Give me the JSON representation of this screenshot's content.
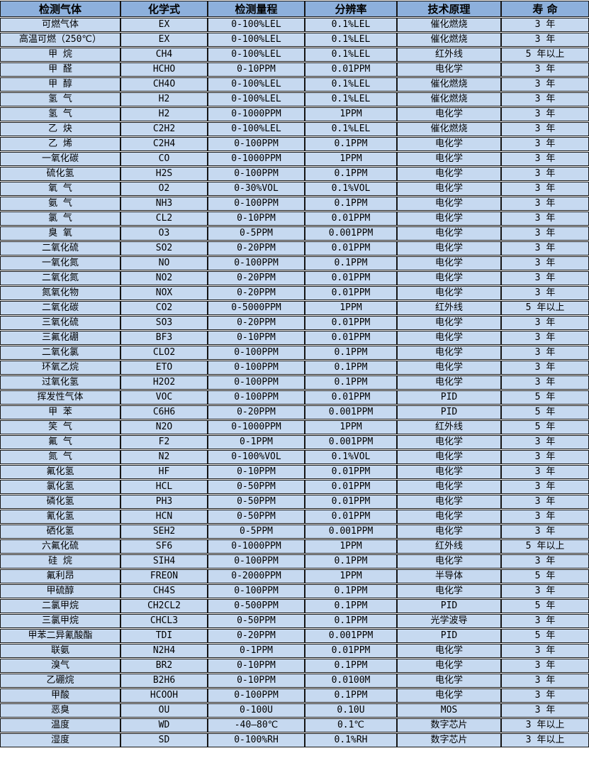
{
  "colors": {
    "header_bg": "#8DB0DC",
    "row_bg": "#C6D9F0",
    "border": "#151515",
    "text": "#000000"
  },
  "table": {
    "columns": [
      "检测气体",
      "化学式",
      "检测量程",
      "分辨率",
      "技术原理",
      "寿 命"
    ],
    "column_keys": [
      "gas",
      "formula",
      "range",
      "resolution",
      "principle",
      "lifespan"
    ],
    "rows": [
      [
        "可燃气体",
        "EX",
        "0-100%LEL",
        "0.1%LEL",
        "催化燃烧",
        "3 年"
      ],
      [
        "高温可燃（250℃）",
        "EX",
        "0-100%LEL",
        "0.1%LEL",
        "催化燃烧",
        "3 年"
      ],
      [
        "甲 烷",
        "CH4",
        "0-100%LEL",
        "0.1%LEL",
        "红外线",
        "5 年以上"
      ],
      [
        "甲 醛",
        "HCHO",
        "0-10PPM",
        "0.01PPM",
        "电化学",
        "3 年"
      ],
      [
        "甲 醇",
        "CH4O",
        "0-100%LEL",
        "0.1%LEL",
        "催化燃烧",
        "3 年"
      ],
      [
        "氢 气",
        "H2",
        "0-100%LEL",
        "0.1%LEL",
        "催化燃烧",
        "3 年"
      ],
      [
        "氢 气",
        "H2",
        "0-1000PPM",
        "1PPM",
        "电化学",
        "3 年"
      ],
      [
        "乙 炔",
        "C2H2",
        "0-100%LEL",
        "0.1%LEL",
        "催化燃烧",
        "3 年"
      ],
      [
        "乙 烯",
        "C2H4",
        "0-100PPM",
        "0.1PPM",
        "电化学",
        "3 年"
      ],
      [
        "一氧化碳",
        "CO",
        "0-1000PPM",
        "1PPM",
        "电化学",
        "3 年"
      ],
      [
        "硫化氢",
        "H2S",
        "0-100PPM",
        "0.1PPM",
        "电化学",
        "3 年"
      ],
      [
        "氧 气",
        "O2",
        "0-30%VOL",
        "0.1%VOL",
        "电化学",
        "3 年"
      ],
      [
        "氨 气",
        "NH3",
        "0-100PPM",
        "0.1PPM",
        "电化学",
        "3 年"
      ],
      [
        "氯 气",
        "CL2",
        "0-10PPM",
        "0.01PPM",
        "电化学",
        "3 年"
      ],
      [
        "臭 氧",
        "O3",
        "0-5PPM",
        "0.001PPM",
        "电化学",
        "3 年"
      ],
      [
        "二氧化硫",
        "SO2",
        "0-20PPM",
        "0.01PPM",
        "电化学",
        "3 年"
      ],
      [
        "一氧化氮",
        "NO",
        "0-100PPM",
        "0.1PPM",
        "电化学",
        "3 年"
      ],
      [
        "二氧化氮",
        "NO2",
        "0-20PPM",
        "0.01PPM",
        "电化学",
        "3 年"
      ],
      [
        "氮氧化物",
        "NOX",
        "0-20PPM",
        "0.01PPM",
        "电化学",
        "3 年"
      ],
      [
        "二氧化碳",
        "CO2",
        "0-5000PPM",
        "1PPM",
        "红外线",
        "5 年以上"
      ],
      [
        "三氧化硫",
        "SO3",
        "0-20PPM",
        "0.01PPM",
        "电化学",
        "3 年"
      ],
      [
        "三氟化硼",
        "BF3",
        "0-10PPM",
        "0.01PPM",
        "电化学",
        "3 年"
      ],
      [
        "二氧化氯",
        "CLO2",
        "0-100PPM",
        "0.1PPM",
        "电化学",
        "3 年"
      ],
      [
        "环氧乙烷",
        "ETO",
        "0-100PPM",
        "0.1PPM",
        "电化学",
        "3 年"
      ],
      [
        "过氧化氢",
        "H2O2",
        "0-100PPM",
        "0.1PPM",
        "电化学",
        "3 年"
      ],
      [
        "挥发性气体",
        "VOC",
        "0-100PPM",
        "0.01PPM",
        "PID",
        "5 年"
      ],
      [
        "甲 苯",
        "C6H6",
        "0-20PPM",
        "0.001PPM",
        "PID",
        "5 年"
      ],
      [
        "笑 气",
        "N2O",
        "0-1000PPM",
        "1PPM",
        "红外线",
        "5 年"
      ],
      [
        "氟 气",
        "F2",
        "0-1PPM",
        "0.001PPM",
        "电化学",
        "3 年"
      ],
      [
        "氮 气",
        "N2",
        "0-100%VOL",
        "0.1%VOL",
        "电化学",
        "3 年"
      ],
      [
        "氟化氢",
        "HF",
        "0-10PPM",
        "0.01PPM",
        "电化学",
        "3 年"
      ],
      [
        "氯化氢",
        "HCL",
        "0-50PPM",
        "0.01PPM",
        "电化学",
        "3 年"
      ],
      [
        "磷化氢",
        "PH3",
        "0-50PPM",
        "0.01PPM",
        "电化学",
        "3 年"
      ],
      [
        "氰化氢",
        "HCN",
        "0-50PPM",
        "0.01PPM",
        "电化学",
        "3 年"
      ],
      [
        "硒化氢",
        "SEH2",
        "0-5PPM",
        "0.001PPM",
        "电化学",
        "3 年"
      ],
      [
        "六氟化硫",
        "SF6",
        "0-1000PPM",
        "1PPM",
        "红外线",
        "5 年以上"
      ],
      [
        "硅 烷",
        "SIH4",
        "0-100PPM",
        "0.1PPM",
        "电化学",
        "3 年"
      ],
      [
        "氟利昂",
        "FREON",
        "0-2000PPM",
        "1PPM",
        "半导体",
        "5 年"
      ],
      [
        "甲硫醇",
        "CH4S",
        "0-100PPM",
        "0.1PPM",
        "电化学",
        "3 年"
      ],
      [
        "二氯甲烷",
        "CH2CL2",
        "0-500PPM",
        "0.1PPM",
        "PID",
        "5 年"
      ],
      [
        "三氯甲烷",
        "CHCL3",
        "0-50PPM",
        "0.1PPM",
        "光学波导",
        "3 年"
      ],
      [
        "甲苯二异氰酸酯",
        "TDI",
        "0-20PPM",
        "0.001PPM",
        "PID",
        "5 年"
      ],
      [
        "联氨",
        "N2H4",
        "0-1PPM",
        "0.01PPM",
        "电化学",
        "3 年"
      ],
      [
        "溴气",
        "BR2",
        "0-10PPM",
        "0.1PPM",
        "电化学",
        "3 年"
      ],
      [
        "乙硼烷",
        "B2H6",
        "0-10PPM",
        "0.0100M",
        "电化学",
        "3 年"
      ],
      [
        "甲酸",
        "HCOOH",
        "0-100PPM",
        "0.1PPM",
        "电化学",
        "3 年"
      ],
      [
        "恶臭",
        "OU",
        "0-100U",
        "0.10U",
        "MOS",
        "3 年"
      ],
      [
        "温度",
        "WD",
        "-40—80℃",
        "0.1℃",
        "数字芯片",
        "3 年以上"
      ],
      [
        "湿度",
        "SD",
        "0-100%RH",
        "0.1%RH",
        "数字芯片",
        "3 年以上"
      ]
    ]
  }
}
